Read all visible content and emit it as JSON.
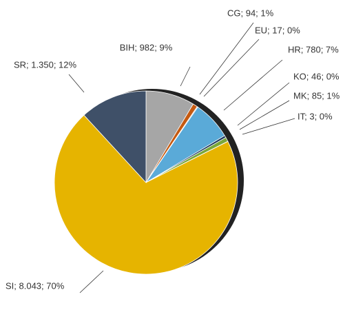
{
  "chart_data": {
    "type": "pie",
    "categories": [
      "BIH",
      "CG",
      "EU",
      "HR",
      "KO",
      "MK",
      "IT",
      "SI",
      "SR"
    ],
    "values": [
      982,
      94,
      17,
      780,
      46,
      85,
      3,
      8043,
      1350
    ],
    "value_labels": [
      "BIH; 982; 9%",
      "CG; 94; 1%",
      "EU; 17; 0%",
      "HR; 780; 7%",
      "KO; 46; 0%",
      "MK; 85; 1%",
      "IT; 3; 0%",
      "SI; 8.043; 70%",
      "SR; 1.350; 12%"
    ],
    "colors": [
      "#a6a6a6",
      "#c55a11",
      "#bfbfbf",
      "#5aaad8",
      "#1f3a5f",
      "#7aa73b",
      "#d9d9d9",
      "#e6b400",
      "#3f5068"
    ]
  }
}
